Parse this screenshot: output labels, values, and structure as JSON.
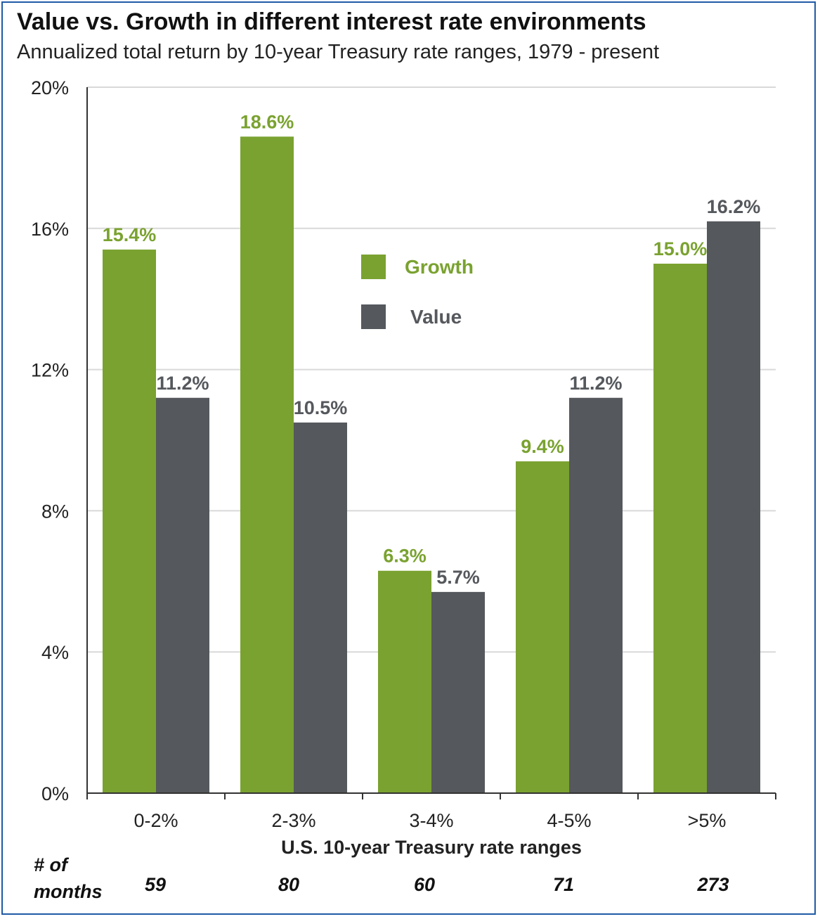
{
  "chart_data": {
    "type": "bar",
    "title": "Value vs. Growth in different interest rate environments",
    "subtitle": "Annualized total return by 10-year Treasury rate ranges, 1979 - present",
    "xlabel": "U.S. 10-year Treasury rate ranges",
    "ylabel": "",
    "ylim": [
      0,
      20
    ],
    "yticks": [
      0,
      4,
      8,
      12,
      16,
      20
    ],
    "ytick_labels": [
      "0%",
      "4%",
      "8%",
      "12%",
      "16%",
      "20%"
    ],
    "grid": true,
    "legend_position": "center",
    "categories": [
      "0-2%",
      "2-3%",
      "3-4%",
      "4-5%",
      ">5%"
    ],
    "series": [
      {
        "name": "Growth",
        "color": "#7aa230",
        "values": [
          15.4,
          18.6,
          6.3,
          9.4,
          15.0
        ],
        "labels": [
          "15.4%",
          "18.6%",
          "6.3%",
          "9.4%",
          "15.0%"
        ]
      },
      {
        "name": "Value",
        "color": "#55585c",
        "values": [
          11.2,
          10.5,
          5.7,
          11.2,
          16.2
        ],
        "labels": [
          "11.2%",
          "10.5%",
          "5.7%",
          "11.2%",
          "16.2%"
        ]
      }
    ],
    "months": {
      "header_line1": "# of",
      "header_line2": "months",
      "values": [
        "59",
        "80",
        "60",
        "71",
        "273"
      ]
    }
  }
}
